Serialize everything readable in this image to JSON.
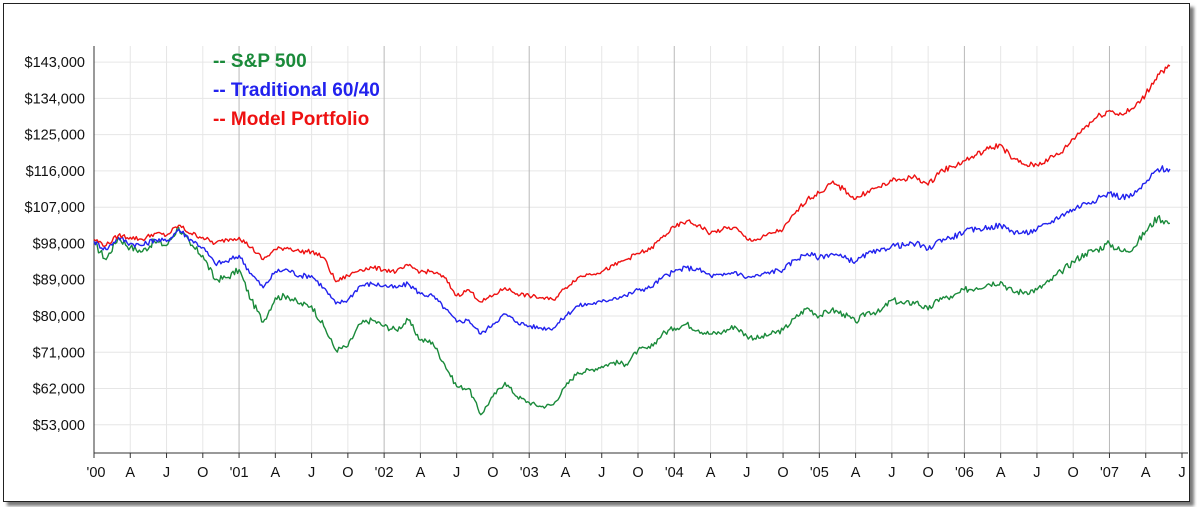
{
  "chart_data": {
    "type": "line",
    "title": "",
    "xlabel": "",
    "ylabel": "",
    "y_ticks": [
      "$143,000",
      "$134,000",
      "$125,000",
      "$116,000",
      "$107,000",
      "$98,000",
      "$89,000",
      "$80,000",
      "$71,000",
      "$62,000",
      "$53,000"
    ],
    "y_tick_values": [
      143000,
      134000,
      125000,
      116000,
      107000,
      98000,
      89000,
      80000,
      71000,
      62000,
      53000
    ],
    "ylim": [
      46000,
      147000
    ],
    "x_ticks": [
      "'00",
      "A",
      "J",
      "O",
      "'01",
      "A",
      "J",
      "O",
      "'02",
      "A",
      "J",
      "O",
      "'03",
      "A",
      "J",
      "O",
      "'04",
      "A",
      "J",
      "O",
      "'05",
      "A",
      "J",
      "O",
      "'06",
      "A",
      "J",
      "O",
      "'07",
      "A",
      "J"
    ],
    "x_tick_dates": [
      "2000-01",
      "2000-04",
      "2000-07",
      "2000-10",
      "2001-01",
      "2001-04",
      "2001-07",
      "2001-10",
      "2002-01",
      "2002-04",
      "2002-07",
      "2002-10",
      "2003-01",
      "2003-04",
      "2003-07",
      "2003-10",
      "2004-01",
      "2004-04",
      "2004-07",
      "2004-10",
      "2005-01",
      "2005-04",
      "2005-07",
      "2005-10",
      "2006-01",
      "2006-04",
      "2006-07",
      "2006-10",
      "2007-01",
      "2007-04",
      "2007-07"
    ],
    "grid": true,
    "legend_position": "top-left",
    "series": [
      {
        "name": "-- S&P 500",
        "color": "#1a8a3a",
        "points": [
          [
            "2000-01",
            98000
          ],
          [
            "2000-02",
            94000
          ],
          [
            "2000-03",
            99500
          ],
          [
            "2000-04",
            97000
          ],
          [
            "2000-05",
            96000
          ],
          [
            "2000-06",
            98500
          ],
          [
            "2000-07",
            97500
          ],
          [
            "2000-08",
            102000
          ],
          [
            "2000-09",
            97500
          ],
          [
            "2000-10",
            95000
          ],
          [
            "2000-11",
            89000
          ],
          [
            "2000-12",
            89500
          ],
          [
            "2001-01",
            91500
          ],
          [
            "2001-02",
            84000
          ],
          [
            "2001-03",
            78500
          ],
          [
            "2001-04",
            84500
          ],
          [
            "2001-05",
            85000
          ],
          [
            "2001-06",
            83000
          ],
          [
            "2001-07",
            82500
          ],
          [
            "2001-08",
            77500
          ],
          [
            "2001-09",
            71500
          ],
          [
            "2001-10",
            72500
          ],
          [
            "2001-11",
            78000
          ],
          [
            "2001-12",
            79000
          ],
          [
            "2002-01",
            77500
          ],
          [
            "2002-02",
            76500
          ],
          [
            "2002-03",
            79000
          ],
          [
            "2002-04",
            74000
          ],
          [
            "2002-05",
            73500
          ],
          [
            "2002-06",
            68000
          ],
          [
            "2002-07",
            62500
          ],
          [
            "2002-08",
            62000
          ],
          [
            "2002-09",
            55500
          ],
          [
            "2002-10",
            60000
          ],
          [
            "2002-11",
            63500
          ],
          [
            "2002-12",
            60000
          ],
          [
            "2003-01",
            58500
          ],
          [
            "2003-02",
            57500
          ],
          [
            "2003-03",
            58000
          ],
          [
            "2003-04",
            62500
          ],
          [
            "2003-05",
            66000
          ],
          [
            "2003-06",
            66500
          ],
          [
            "2003-07",
            67500
          ],
          [
            "2003-08",
            68500
          ],
          [
            "2003-09",
            68000
          ],
          [
            "2003-10",
            71500
          ],
          [
            "2003-11",
            72000
          ],
          [
            "2003-12",
            75500
          ],
          [
            "2004-01",
            77000
          ],
          [
            "2004-02",
            78000
          ],
          [
            "2004-03",
            76500
          ],
          [
            "2004-04",
            75500
          ],
          [
            "2004-05",
            76000
          ],
          [
            "2004-06",
            77500
          ],
          [
            "2004-07",
            75000
          ],
          [
            "2004-08",
            74500
          ],
          [
            "2004-09",
            75500
          ],
          [
            "2004-10",
            76500
          ],
          [
            "2004-11",
            79500
          ],
          [
            "2004-12",
            82000
          ],
          [
            "2005-01",
            80000
          ],
          [
            "2005-02",
            81500
          ],
          [
            "2005-03",
            80500
          ],
          [
            "2005-04",
            78500
          ],
          [
            "2005-05",
            81000
          ],
          [
            "2005-06",
            81000
          ],
          [
            "2005-07",
            84000
          ],
          [
            "2005-08",
            83000
          ],
          [
            "2005-09",
            83500
          ],
          [
            "2005-10",
            81500
          ],
          [
            "2005-11",
            84500
          ],
          [
            "2005-12",
            84500
          ],
          [
            "2006-01",
            86500
          ],
          [
            "2006-02",
            87000
          ],
          [
            "2006-03",
            88000
          ],
          [
            "2006-04",
            88500
          ],
          [
            "2006-05",
            86000
          ],
          [
            "2006-06",
            86000
          ],
          [
            "2006-07",
            86500
          ],
          [
            "2006-08",
            88500
          ],
          [
            "2006-09",
            91000
          ],
          [
            "2006-10",
            93500
          ],
          [
            "2006-11",
            95500
          ],
          [
            "2006-12",
            96500
          ],
          [
            "2007-01",
            98000
          ],
          [
            "2007-02",
            96000
          ],
          [
            "2007-03",
            97000
          ],
          [
            "2007-04",
            101000
          ],
          [
            "2007-05",
            104500
          ],
          [
            "2007-06",
            103000
          ]
        ]
      },
      {
        "name": "-- Traditional 60/40",
        "color": "#2222ee",
        "points": [
          [
            "2000-01",
            98500
          ],
          [
            "2000-02",
            96500
          ],
          [
            "2000-03",
            99500
          ],
          [
            "2000-04",
            98000
          ],
          [
            "2000-05",
            97500
          ],
          [
            "2000-06",
            99000
          ],
          [
            "2000-07",
            98500
          ],
          [
            "2000-08",
            101500
          ],
          [
            "2000-09",
            99000
          ],
          [
            "2000-10",
            97000
          ],
          [
            "2000-11",
            93000
          ],
          [
            "2000-12",
            93500
          ],
          [
            "2001-01",
            95000
          ],
          [
            "2001-02",
            90500
          ],
          [
            "2001-03",
            87000
          ],
          [
            "2001-04",
            91000
          ],
          [
            "2001-05",
            91500
          ],
          [
            "2001-06",
            90000
          ],
          [
            "2001-07",
            90000
          ],
          [
            "2001-08",
            87000
          ],
          [
            "2001-09",
            83000
          ],
          [
            "2001-10",
            84000
          ],
          [
            "2001-11",
            87500
          ],
          [
            "2001-12",
            88000
          ],
          [
            "2002-01",
            87500
          ],
          [
            "2002-02",
            87000
          ],
          [
            "2002-03",
            88000
          ],
          [
            "2002-04",
            85500
          ],
          [
            "2002-05",
            85000
          ],
          [
            "2002-06",
            82000
          ],
          [
            "2002-07",
            78500
          ],
          [
            "2002-08",
            79000
          ],
          [
            "2002-09",
            75500
          ],
          [
            "2002-10",
            78000
          ],
          [
            "2002-11",
            80500
          ],
          [
            "2002-12",
            78500
          ],
          [
            "2003-01",
            77500
          ],
          [
            "2003-02",
            77000
          ],
          [
            "2003-03",
            77000
          ],
          [
            "2003-04",
            80000
          ],
          [
            "2003-05",
            82500
          ],
          [
            "2003-06",
            83000
          ],
          [
            "2003-07",
            83500
          ],
          [
            "2003-08",
            84500
          ],
          [
            "2003-09",
            85000
          ],
          [
            "2003-10",
            86500
          ],
          [
            "2003-11",
            87000
          ],
          [
            "2003-12",
            89500
          ],
          [
            "2004-01",
            91000
          ],
          [
            "2004-02",
            92000
          ],
          [
            "2004-03",
            91500
          ],
          [
            "2004-04",
            90000
          ],
          [
            "2004-05",
            90000
          ],
          [
            "2004-06",
            91000
          ],
          [
            "2004-07",
            89500
          ],
          [
            "2004-08",
            90000
          ],
          [
            "2004-09",
            91000
          ],
          [
            "2004-10",
            91500
          ],
          [
            "2004-11",
            94000
          ],
          [
            "2004-12",
            95500
          ],
          [
            "2005-01",
            94500
          ],
          [
            "2005-02",
            95500
          ],
          [
            "2005-03",
            94500
          ],
          [
            "2005-04",
            93500
          ],
          [
            "2005-05",
            95500
          ],
          [
            "2005-06",
            96000
          ],
          [
            "2005-07",
            97500
          ],
          [
            "2005-08",
            97500
          ],
          [
            "2005-09",
            98000
          ],
          [
            "2005-10",
            96500
          ],
          [
            "2005-11",
            99000
          ],
          [
            "2005-12",
            99500
          ],
          [
            "2006-01",
            101000
          ],
          [
            "2006-02",
            101500
          ],
          [
            "2006-03",
            102000
          ],
          [
            "2006-04",
            102500
          ],
          [
            "2006-05",
            101000
          ],
          [
            "2006-06",
            100500
          ],
          [
            "2006-07",
            101500
          ],
          [
            "2006-08",
            103000
          ],
          [
            "2006-09",
            105000
          ],
          [
            "2006-10",
            106500
          ],
          [
            "2006-11",
            108000
          ],
          [
            "2006-12",
            109000
          ],
          [
            "2007-01",
            110500
          ],
          [
            "2007-02",
            109500
          ],
          [
            "2007-03",
            110000
          ],
          [
            "2007-04",
            113000
          ],
          [
            "2007-05",
            116500
          ],
          [
            "2007-06",
            116500
          ]
        ]
      },
      {
        "name": "-- Model Portfolio",
        "color": "#ee1111",
        "points": [
          [
            "2000-01",
            99000
          ],
          [
            "2000-02",
            97500
          ],
          [
            "2000-03",
            100000
          ],
          [
            "2000-04",
            99500
          ],
          [
            "2000-05",
            99000
          ],
          [
            "2000-06",
            100500
          ],
          [
            "2000-07",
            100000
          ],
          [
            "2000-08",
            102500
          ],
          [
            "2000-09",
            100500
          ],
          [
            "2000-10",
            99500
          ],
          [
            "2000-11",
            98000
          ],
          [
            "2000-12",
            99000
          ],
          [
            "2001-01",
            99500
          ],
          [
            "2001-02",
            97000
          ],
          [
            "2001-03",
            94000
          ],
          [
            "2001-04",
            96500
          ],
          [
            "2001-05",
            97000
          ],
          [
            "2001-06",
            96000
          ],
          [
            "2001-07",
            96000
          ],
          [
            "2001-08",
            94500
          ],
          [
            "2001-09",
            88500
          ],
          [
            "2001-10",
            90000
          ],
          [
            "2001-11",
            91500
          ],
          [
            "2001-12",
            92000
          ],
          [
            "2002-01",
            91500
          ],
          [
            "2002-02",
            91000
          ],
          [
            "2002-03",
            92500
          ],
          [
            "2002-04",
            91000
          ],
          [
            "2002-05",
            91000
          ],
          [
            "2002-06",
            89500
          ],
          [
            "2002-07",
            85000
          ],
          [
            "2002-08",
            86500
          ],
          [
            "2002-09",
            83500
          ],
          [
            "2002-10",
            85000
          ],
          [
            "2002-11",
            87000
          ],
          [
            "2002-12",
            85500
          ],
          [
            "2003-01",
            85000
          ],
          [
            "2003-02",
            84500
          ],
          [
            "2003-03",
            84000
          ],
          [
            "2003-04",
            87000
          ],
          [
            "2003-05",
            89500
          ],
          [
            "2003-06",
            90500
          ],
          [
            "2003-07",
            91000
          ],
          [
            "2003-08",
            92500
          ],
          [
            "2003-09",
            94000
          ],
          [
            "2003-10",
            95500
          ],
          [
            "2003-11",
            96500
          ],
          [
            "2003-12",
            99500
          ],
          [
            "2004-01",
            102000
          ],
          [
            "2004-02",
            103500
          ],
          [
            "2004-03",
            102500
          ],
          [
            "2004-04",
            100500
          ],
          [
            "2004-05",
            101500
          ],
          [
            "2004-06",
            102000
          ],
          [
            "2004-07",
            99000
          ],
          [
            "2004-08",
            99000
          ],
          [
            "2004-09",
            100500
          ],
          [
            "2004-10",
            101500
          ],
          [
            "2004-11",
            105500
          ],
          [
            "2004-12",
            109000
          ],
          [
            "2005-01",
            110500
          ],
          [
            "2005-02",
            113000
          ],
          [
            "2005-03",
            111500
          ],
          [
            "2005-04",
            109000
          ],
          [
            "2005-05",
            111000
          ],
          [
            "2005-06",
            112000
          ],
          [
            "2005-07",
            113500
          ],
          [
            "2005-08",
            114000
          ],
          [
            "2005-09",
            114500
          ],
          [
            "2005-10",
            112500
          ],
          [
            "2005-11",
            116000
          ],
          [
            "2005-12",
            117000
          ],
          [
            "2006-01",
            118500
          ],
          [
            "2006-02",
            120000
          ],
          [
            "2006-03",
            121500
          ],
          [
            "2006-04",
            122500
          ],
          [
            "2006-05",
            119000
          ],
          [
            "2006-06",
            117500
          ],
          [
            "2006-07",
            117500
          ],
          [
            "2006-08",
            119000
          ],
          [
            "2006-09",
            120500
          ],
          [
            "2006-10",
            124000
          ],
          [
            "2006-11",
            127000
          ],
          [
            "2006-12",
            129500
          ],
          [
            "2007-01",
            131000
          ],
          [
            "2007-02",
            130000
          ],
          [
            "2007-03",
            131500
          ],
          [
            "2007-04",
            135000
          ],
          [
            "2007-05",
            140000
          ],
          [
            "2007-06",
            142000
          ]
        ]
      }
    ]
  }
}
